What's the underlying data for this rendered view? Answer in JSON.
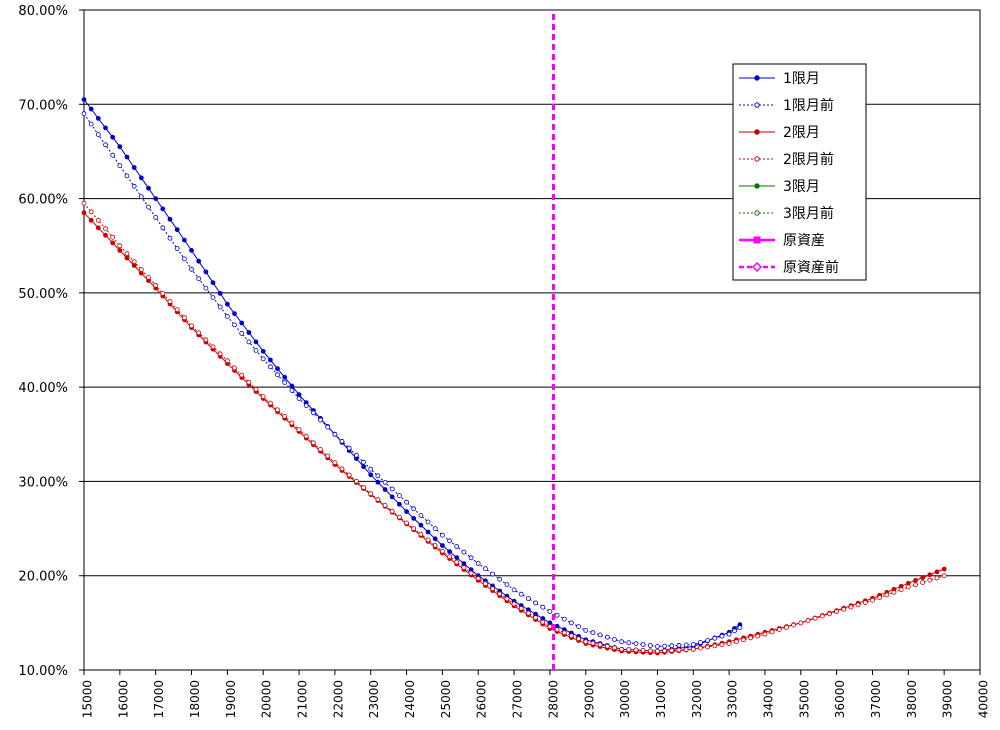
{
  "chart_data": {
    "type": "line",
    "xlim": [
      15000,
      40000
    ],
    "ylim": [
      0.1,
      0.8
    ],
    "x_ticks": [
      "15000",
      "16000",
      "17000",
      "18000",
      "19000",
      "20000",
      "21000",
      "22000",
      "23000",
      "24000",
      "25000",
      "26000",
      "27000",
      "28000",
      "29000",
      "30000",
      "31000",
      "32000",
      "33000",
      "34000",
      "35000",
      "36000",
      "37000",
      "38000",
      "39000",
      "40000"
    ],
    "y_ticks": [
      "10.00%",
      "20.00%",
      "30.00%",
      "40.00%",
      "50.00%",
      "60.00%",
      "70.00%",
      "80.00%"
    ],
    "grid": "horizontal",
    "legend_position": "top-right",
    "underlying_price": 28100,
    "series": [
      {
        "name": "1限月",
        "color": "#0000cc",
        "style": "solid-filled-dots",
        "x": [
          15000,
          16000,
          17000,
          18000,
          19000,
          20000,
          21000,
          22000,
          23000,
          24000,
          25000,
          26000,
          27000,
          28000,
          29000,
          30000,
          31000,
          32000,
          33000,
          33300
        ],
        "y": [
          0.705,
          0.655,
          0.6,
          0.545,
          0.488,
          0.438,
          0.392,
          0.35,
          0.307,
          0.268,
          0.232,
          0.2,
          0.173,
          0.15,
          0.132,
          0.122,
          0.12,
          0.125,
          0.14,
          0.148
        ]
      },
      {
        "name": "1限月前",
        "color": "#0000cc",
        "style": "dotted-open-dots",
        "x": [
          15000,
          16000,
          17000,
          18000,
          19000,
          20000,
          21000,
          22000,
          23000,
          24000,
          25000,
          26000,
          27000,
          28000,
          29000,
          30000,
          31000,
          32000,
          33000,
          33300
        ],
        "y": [
          0.69,
          0.635,
          0.58,
          0.525,
          0.475,
          0.43,
          0.388,
          0.35,
          0.313,
          0.278,
          0.243,
          0.213,
          0.185,
          0.162,
          0.142,
          0.13,
          0.125,
          0.127,
          0.138,
          0.145
        ]
      },
      {
        "name": "2限月",
        "color": "#cc0000",
        "style": "solid-filled-dots",
        "x": [
          15000,
          16000,
          17000,
          18000,
          19000,
          20000,
          21000,
          22000,
          23000,
          24000,
          25000,
          26000,
          27000,
          28000,
          29000,
          30000,
          31000,
          32000,
          33000,
          34000,
          35000,
          36000,
          37000,
          38000,
          39000
        ],
        "y": [
          0.585,
          0.545,
          0.505,
          0.463,
          0.425,
          0.388,
          0.353,
          0.318,
          0.286,
          0.255,
          0.224,
          0.195,
          0.168,
          0.144,
          0.128,
          0.12,
          0.118,
          0.122,
          0.13,
          0.14,
          0.15,
          0.163,
          0.176,
          0.192,
          0.207
        ]
      },
      {
        "name": "2限月前",
        "color": "#cc0000",
        "style": "dotted-open-dots",
        "x": [
          15000,
          16000,
          17000,
          18000,
          19000,
          20000,
          21000,
          22000,
          23000,
          24000,
          25000,
          26000,
          27000,
          28000,
          29000,
          30000,
          31000,
          32000,
          33000,
          34000,
          35000,
          36000,
          37000,
          38000,
          39000
        ],
        "y": [
          0.595,
          0.55,
          0.508,
          0.465,
          0.428,
          0.39,
          0.355,
          0.32,
          0.287,
          0.256,
          0.226,
          0.197,
          0.17,
          0.146,
          0.13,
          0.122,
          0.12,
          0.122,
          0.128,
          0.138,
          0.15,
          0.162,
          0.174,
          0.188,
          0.2
        ]
      },
      {
        "name": "3限月",
        "color": "#007700",
        "style": "solid-filled-dots",
        "x": [],
        "y": []
      },
      {
        "name": "3限月前",
        "color": "#007700",
        "style": "dotted-open-dots",
        "x": [],
        "y": []
      },
      {
        "name": "原資産",
        "color": "#ff00ff",
        "style": "solid-square",
        "x": [],
        "y": []
      },
      {
        "name": "原資産前",
        "color": "#ff00ff",
        "style": "dashed-diamond",
        "x": [
          28100,
          28100
        ],
        "y": [
          0.1,
          0.8
        ]
      }
    ]
  }
}
